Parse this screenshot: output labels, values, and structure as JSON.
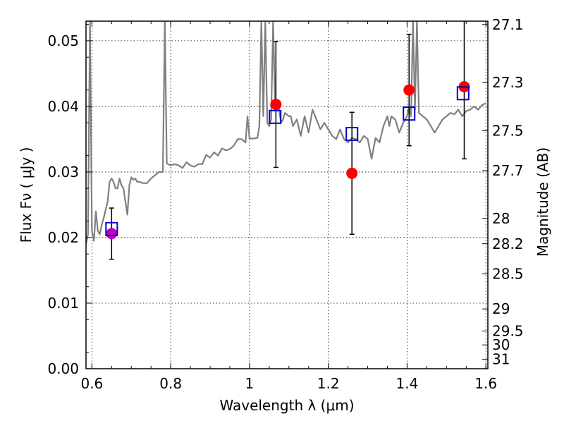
{
  "chart_data": {
    "type": "scatter",
    "xlabel": "Wavelength  λ (μm)",
    "ylabel": "Flux  Fν  ( μJy )",
    "y2label": "Magnitude (AB)",
    "xlim": [
      0.585,
      1.605
    ],
    "ylim": [
      0.0,
      0.053
    ],
    "grid": true,
    "xticks": [
      0.6,
      0.8,
      1.0,
      1.2,
      1.4,
      1.6
    ],
    "xtick_labels": [
      "0.6",
      "0.8",
      "1",
      "1.2",
      "1.4",
      "1.6"
    ],
    "yticks": [
      0.0,
      0.01,
      0.02,
      0.03,
      0.04,
      0.05
    ],
    "ytick_labels": [
      "0.00",
      "0.01",
      "0.02",
      "0.03",
      "0.04",
      "0.05"
    ],
    "y2ticks": [
      27.1,
      27.3,
      27.5,
      27.7,
      28,
      28.2,
      28.5,
      29,
      29.5,
      30,
      31
    ],
    "y2tick_labels": [
      "27.1",
      "27.3",
      "27.5",
      "27.7",
      "28",
      "28.2",
      "28.5",
      "29",
      "29.5",
      "30",
      "31"
    ],
    "series": [
      {
        "kind": "line",
        "color": "#808080",
        "x": [
          0.585,
          0.59,
          0.595,
          0.6,
          0.605,
          0.61,
          0.615,
          0.62,
          0.625,
          0.63,
          0.64,
          0.645,
          0.65,
          0.655,
          0.66,
          0.665,
          0.67,
          0.675,
          0.68,
          0.685,
          0.69,
          0.695,
          0.7,
          0.705,
          0.71,
          0.715,
          0.72,
          0.73,
          0.74,
          0.75,
          0.76,
          0.77,
          0.775,
          0.78,
          0.785,
          0.79,
          0.8,
          0.81,
          0.82,
          0.83,
          0.84,
          0.85,
          0.86,
          0.87,
          0.88,
          0.89,
          0.9,
          0.91,
          0.92,
          0.93,
          0.94,
          0.95,
          0.96,
          0.97,
          0.98,
          0.99,
          0.995,
          1.0,
          1.01,
          1.02,
          1.025,
          1.03,
          1.035,
          1.04,
          1.045,
          1.05,
          1.055,
          1.06,
          1.065,
          1.07,
          1.075,
          1.08,
          1.085,
          1.09,
          1.1,
          1.105,
          1.11,
          1.12,
          1.13,
          1.14,
          1.15,
          1.16,
          1.17,
          1.18,
          1.19,
          1.2,
          1.21,
          1.22,
          1.23,
          1.24,
          1.25,
          1.26,
          1.27,
          1.28,
          1.29,
          1.3,
          1.31,
          1.32,
          1.33,
          1.34,
          1.35,
          1.355,
          1.36,
          1.37,
          1.38,
          1.39,
          1.4,
          1.405,
          1.41,
          1.415,
          1.42,
          1.425,
          1.43,
          1.44,
          1.45,
          1.46,
          1.47,
          1.48,
          1.49,
          1.5,
          1.51,
          1.52,
          1.53,
          1.54,
          1.55,
          1.56,
          1.57,
          1.58,
          1.59,
          1.6
        ],
        "y": [
          0.019,
          0.0205,
          0.053,
          0.021,
          0.0195,
          0.024,
          0.021,
          0.0205,
          0.022,
          0.023,
          0.0255,
          0.0285,
          0.029,
          0.0285,
          0.0275,
          0.0275,
          0.029,
          0.028,
          0.0275,
          0.0255,
          0.0235,
          0.028,
          0.0292,
          0.0288,
          0.029,
          0.0285,
          0.0285,
          0.0283,
          0.0283,
          0.029,
          0.0295,
          0.03,
          0.03,
          0.03,
          0.053,
          0.0313,
          0.031,
          0.0312,
          0.031,
          0.0306,
          0.0315,
          0.031,
          0.0308,
          0.0312,
          0.0312,
          0.0326,
          0.0322,
          0.033,
          0.0325,
          0.0336,
          0.0333,
          0.0335,
          0.034,
          0.035,
          0.035,
          0.0345,
          0.0385,
          0.0351,
          0.0351,
          0.0352,
          0.037,
          0.053,
          0.0385,
          0.053,
          0.0375,
          0.037,
          0.038,
          0.053,
          0.04,
          0.041,
          0.0395,
          0.0375,
          0.038,
          0.039,
          0.0385,
          0.0385,
          0.037,
          0.038,
          0.0355,
          0.0385,
          0.036,
          0.0395,
          0.038,
          0.0365,
          0.0375,
          0.0365,
          0.0355,
          0.035,
          0.0365,
          0.035,
          0.0345,
          0.0352,
          0.035,
          0.0345,
          0.0355,
          0.035,
          0.032,
          0.0352,
          0.0345,
          0.037,
          0.0385,
          0.037,
          0.0385,
          0.038,
          0.036,
          0.0375,
          0.0385,
          0.04,
          0.0385,
          0.053,
          0.0395,
          0.053,
          0.039,
          0.0385,
          0.038,
          0.037,
          0.036,
          0.037,
          0.038,
          0.0385,
          0.039,
          0.0388,
          0.0395,
          0.0385,
          0.0393,
          0.0395,
          0.04,
          0.0395,
          0.0402,
          0.0405
        ],
        "clip": true
      },
      {
        "kind": "errorbar",
        "color": "#000000",
        "x": [
          0.65,
          1.067,
          1.26,
          1.405,
          1.545
        ],
        "y": [
          0.0206,
          0.0403,
          0.0298,
          0.0425,
          0.043
        ],
        "yerr": [
          0.0039,
          0.0096,
          0.0093,
          0.0085,
          0.011
        ]
      },
      {
        "kind": "marker",
        "shape": "circle",
        "x": [
          0.65,
          1.067,
          1.26,
          1.405,
          1.545
        ],
        "y": [
          0.0206,
          0.0403,
          0.0298,
          0.0425,
          0.043
        ],
        "colors": [
          "#bf00bf",
          "#ff0000",
          "#ff0000",
          "#ff0000",
          "#ff0000"
        ]
      },
      {
        "kind": "marker",
        "shape": "square",
        "color": "#0000cc",
        "x": [
          0.65,
          1.065,
          1.26,
          1.405,
          1.542
        ],
        "y": [
          0.0213,
          0.0384,
          0.0358,
          0.0389,
          0.042
        ]
      }
    ]
  }
}
